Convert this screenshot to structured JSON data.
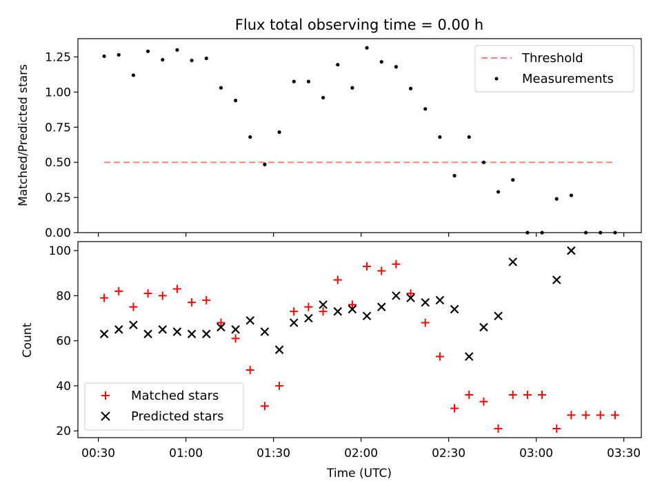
{
  "title": "Flux total observing time = 0.00 h",
  "chart_data": [
    {
      "type": "scatter",
      "ylabel": "Matched/Predicted stars",
      "xlabel": "",
      "ylim": [
        0,
        1.38
      ],
      "yticks": [
        "0.00",
        "0.25",
        "0.50",
        "0.75",
        "1.00",
        "1.25"
      ],
      "ytick_values": [
        0,
        0.25,
        0.5,
        0.75,
        1.0,
        1.25
      ],
      "legend_position": "upper right",
      "legend": [
        "Threshold",
        "Measurements"
      ],
      "threshold": {
        "name": "Threshold",
        "value": 0.5,
        "x_start": "00:32",
        "x_end": "03:27",
        "color": "#ff7f7f"
      },
      "series": [
        {
          "name": "Measurements",
          "marker": "dot",
          "color": "#000000",
          "x": [
            "00:32",
            "00:37",
            "00:42",
            "00:47",
            "00:52",
            "00:57",
            "01:02",
            "01:07",
            "01:12",
            "01:17",
            "01:22",
            "01:27",
            "01:32",
            "01:37",
            "01:42",
            "01:47",
            "01:52",
            "01:57",
            "02:02",
            "02:07",
            "02:12",
            "02:17",
            "02:22",
            "02:27",
            "02:32",
            "02:37",
            "02:42",
            "02:47",
            "02:52",
            "02:57",
            "03:02",
            "03:07",
            "03:12",
            "03:17",
            "03:22",
            "03:27"
          ],
          "y": [
            1.255,
            1.265,
            1.12,
            1.29,
            1.23,
            1.3,
            1.225,
            1.24,
            1.03,
            0.94,
            0.68,
            0.485,
            0.715,
            1.075,
            1.075,
            0.96,
            1.195,
            1.03,
            1.315,
            1.215,
            1.18,
            1.025,
            0.88,
            0.68,
            0.405,
            0.68,
            0.5,
            0.29,
            0.375,
            0.0,
            0.0,
            0.24,
            0.265,
            0.0,
            0.0,
            0.0
          ]
        }
      ]
    },
    {
      "type": "scatter",
      "ylabel": "Count",
      "xlabel": "Time (UTC)",
      "ylim": [
        17,
        104
      ],
      "yticks": [
        "20",
        "40",
        "60",
        "80",
        "100"
      ],
      "ytick_values": [
        20,
        40,
        60,
        80,
        100
      ],
      "xlim": [
        "00:23",
        "03:36"
      ],
      "xticks": [
        "00:30",
        "01:00",
        "01:30",
        "02:00",
        "02:30",
        "03:00",
        "03:30"
      ],
      "legend_position": "lower left",
      "series": [
        {
          "name": "Matched stars",
          "marker": "plus",
          "color": "#ff0000",
          "x": [
            "00:32",
            "00:37",
            "00:42",
            "00:47",
            "00:52",
            "00:57",
            "01:02",
            "01:07",
            "01:12",
            "01:17",
            "01:22",
            "01:27",
            "01:32",
            "01:37",
            "01:42",
            "01:47",
            "01:52",
            "01:57",
            "02:02",
            "02:07",
            "02:12",
            "02:17",
            "02:22",
            "02:27",
            "02:32",
            "02:37",
            "02:42",
            "02:47",
            "02:52",
            "02:57",
            "03:02",
            "03:07",
            "03:12",
            "03:17",
            "03:22",
            "03:27"
          ],
          "y": [
            79,
            82,
            75,
            81,
            80,
            83,
            77,
            78,
            68,
            61,
            47,
            31,
            40,
            73,
            75,
            73,
            87,
            76,
            93,
            91,
            94,
            81,
            68,
            53,
            30,
            36,
            33,
            21,
            36,
            36,
            36,
            21,
            27,
            27,
            27,
            27
          ]
        },
        {
          "name": "Predicted stars",
          "marker": "x",
          "color": "#000000",
          "x": [
            "00:32",
            "00:37",
            "00:42",
            "00:47",
            "00:52",
            "00:57",
            "01:02",
            "01:07",
            "01:12",
            "01:17",
            "01:22",
            "01:27",
            "01:32",
            "01:37",
            "01:42",
            "01:47",
            "01:52",
            "01:57",
            "02:02",
            "02:07",
            "02:12",
            "02:17",
            "02:22",
            "02:27",
            "02:32",
            "02:37",
            "02:42",
            "02:47",
            "02:52",
            "03:07",
            "03:12"
          ],
          "y": [
            63,
            65,
            67,
            63,
            65,
            64,
            63,
            63,
            66,
            65,
            69,
            64,
            56,
            68,
            70,
            76,
            73,
            74,
            71,
            75,
            80,
            79,
            77,
            78,
            74,
            53,
            66,
            71,
            95,
            87,
            100
          ]
        }
      ]
    }
  ]
}
